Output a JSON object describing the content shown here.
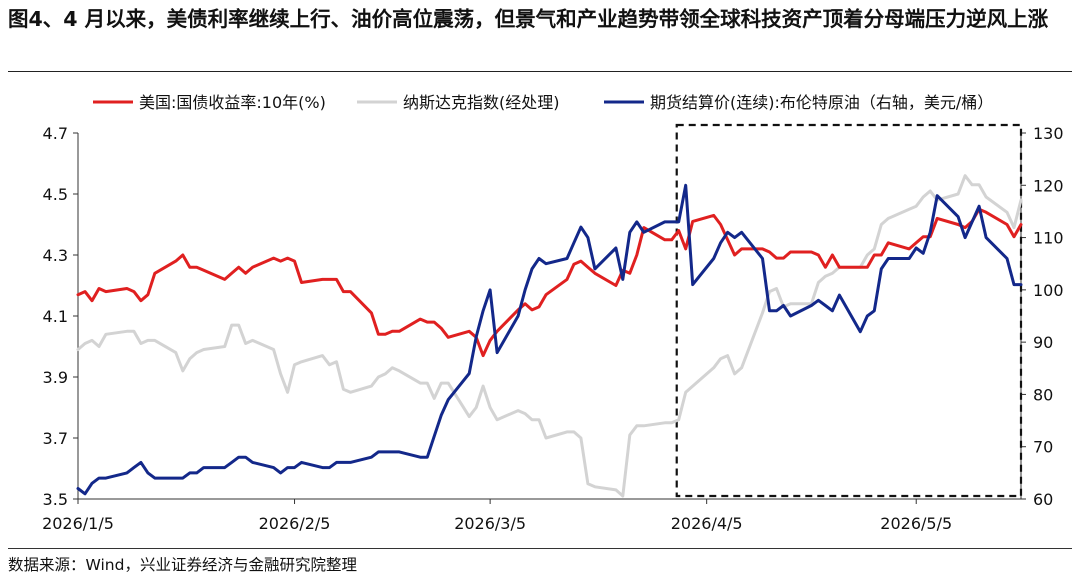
{
  "figure": {
    "title": "图4、4 月以来，美债利率继续上行、油价高位震荡，但景气和产业趋势带领全球科技资产顶着分母端压力逆风上涨",
    "source": "数据来源：Wind，兴业证券经济与金融研究院整理"
  },
  "colors": {
    "us10y": "#e02020",
    "nasdaq": "#d3d3d3",
    "brent": "#13288a"
  },
  "chart_data": {
    "type": "line",
    "title": "图4、4 月以来，美债利率继续上行、油价高位震荡，但景气和产业趋势带领全球科技资产顶着分母端压力逆风上涨",
    "xlabel": "",
    "ylabel": "",
    "y2label": "",
    "x_ticks": [
      "2026/1/5",
      "2026/2/5",
      "2026/3/5",
      "2026/4/5",
      "2026/5/5"
    ],
    "xlim": [
      "2026-01-05",
      "2026-05-20"
    ],
    "ylim_left": [
      3.5,
      4.7
    ],
    "yticks_left": [
      "3.5",
      "3.7",
      "3.9",
      "4.1",
      "4.3",
      "4.5",
      "4.7"
    ],
    "ylim_right": [
      60,
      130
    ],
    "yticks_right": [
      "60",
      "70",
      "80",
      "90",
      "100",
      "110",
      "120",
      "130"
    ],
    "legend_position": "top",
    "grid": false,
    "annotation": "dashed box highlighting the period from 2026/4/1 onward",
    "highlight_range": [
      "2026-04-01",
      "2026-05-20"
    ],
    "series": [
      {
        "name": "美国:国债收益率:10年(%)",
        "axis": "left",
        "color": "#e02020",
        "x": [
          "2026-01-05",
          "2026-01-06",
          "2026-01-07",
          "2026-01-08",
          "2026-01-09",
          "2026-01-12",
          "2026-01-13",
          "2026-01-14",
          "2026-01-15",
          "2026-01-16",
          "2026-01-19",
          "2026-01-20",
          "2026-01-21",
          "2026-01-22",
          "2026-01-23",
          "2026-01-26",
          "2026-01-27",
          "2026-01-28",
          "2026-01-29",
          "2026-01-30",
          "2026-02-02",
          "2026-02-03",
          "2026-02-04",
          "2026-02-05",
          "2026-02-06",
          "2026-02-09",
          "2026-02-10",
          "2026-02-11",
          "2026-02-12",
          "2026-02-13",
          "2026-02-16",
          "2026-02-17",
          "2026-02-18",
          "2026-02-19",
          "2026-02-20",
          "2026-02-23",
          "2026-02-24",
          "2026-02-25",
          "2026-02-26",
          "2026-02-27",
          "2026-03-02",
          "2026-03-03",
          "2026-03-04",
          "2026-03-05",
          "2026-03-06",
          "2026-03-09",
          "2026-03-10",
          "2026-03-11",
          "2026-03-12",
          "2026-03-13",
          "2026-03-16",
          "2026-03-17",
          "2026-03-18",
          "2026-03-19",
          "2026-03-20",
          "2026-03-23",
          "2026-03-24",
          "2026-03-25",
          "2026-03-26",
          "2026-03-27",
          "2026-03-30",
          "2026-03-31",
          "2026-04-01",
          "2026-04-02",
          "2026-04-03",
          "2026-04-06",
          "2026-04-07",
          "2026-04-08",
          "2026-04-09",
          "2026-04-10",
          "2026-04-13",
          "2026-04-14",
          "2026-04-15",
          "2026-04-16",
          "2026-04-17",
          "2026-04-20",
          "2026-04-21",
          "2026-04-22",
          "2026-04-23",
          "2026-04-24",
          "2026-04-27",
          "2026-04-28",
          "2026-04-29",
          "2026-04-30",
          "2026-05-01",
          "2026-05-04",
          "2026-05-05",
          "2026-05-06",
          "2026-05-07",
          "2026-05-08",
          "2026-05-11",
          "2026-05-12",
          "2026-05-13",
          "2026-05-14",
          "2026-05-15",
          "2026-05-18",
          "2026-05-19",
          "2026-05-20"
        ],
        "values": [
          4.17,
          4.18,
          4.15,
          4.19,
          4.18,
          4.19,
          4.18,
          4.15,
          4.17,
          4.24,
          4.28,
          4.3,
          4.26,
          4.26,
          4.25,
          4.22,
          4.24,
          4.26,
          4.24,
          4.26,
          4.29,
          4.28,
          4.29,
          4.28,
          4.21,
          4.22,
          4.22,
          4.22,
          4.18,
          4.18,
          4.11,
          4.04,
          4.04,
          4.05,
          4.05,
          4.09,
          4.08,
          4.08,
          4.06,
          4.03,
          4.05,
          4.03,
          3.97,
          4.02,
          4.05,
          4.12,
          4.14,
          4.12,
          4.13,
          4.17,
          4.22,
          4.27,
          4.28,
          4.26,
          4.24,
          4.2,
          4.25,
          4.24,
          4.3,
          4.39,
          4.35,
          4.35,
          4.38,
          4.32,
          4.41,
          4.43,
          4.4,
          4.35,
          4.3,
          4.32,
          4.32,
          4.31,
          4.29,
          4.29,
          4.31,
          4.31,
          4.3,
          4.26,
          4.3,
          4.26,
          4.26,
          4.26,
          4.3,
          4.3,
          4.34,
          4.32,
          4.34,
          4.36,
          4.36,
          4.42,
          4.4,
          4.39,
          4.41,
          4.45,
          4.44,
          4.4,
          4.36,
          4.4
        ]
      },
      {
        "name": "纳斯达克指数(经处理)",
        "axis": "left",
        "color": "#d3d3d3",
        "x": [
          "2026-01-05",
          "2026-01-06",
          "2026-01-07",
          "2026-01-08",
          "2026-01-09",
          "2026-01-12",
          "2026-01-13",
          "2026-01-14",
          "2026-01-15",
          "2026-01-16",
          "2026-01-19",
          "2026-01-20",
          "2026-01-21",
          "2026-01-22",
          "2026-01-23",
          "2026-01-26",
          "2026-01-27",
          "2026-01-28",
          "2026-01-29",
          "2026-01-30",
          "2026-02-02",
          "2026-02-03",
          "2026-02-04",
          "2026-02-05",
          "2026-02-06",
          "2026-02-09",
          "2026-02-10",
          "2026-02-11",
          "2026-02-12",
          "2026-02-13",
          "2026-02-16",
          "2026-02-17",
          "2026-02-18",
          "2026-02-19",
          "2026-02-20",
          "2026-02-23",
          "2026-02-24",
          "2026-02-25",
          "2026-02-26",
          "2026-02-27",
          "2026-03-02",
          "2026-03-03",
          "2026-03-04",
          "2026-03-05",
          "2026-03-06",
          "2026-03-09",
          "2026-03-10",
          "2026-03-11",
          "2026-03-12",
          "2026-03-13",
          "2026-03-16",
          "2026-03-17",
          "2026-03-18",
          "2026-03-19",
          "2026-03-20",
          "2026-03-23",
          "2026-03-24",
          "2026-03-25",
          "2026-03-26",
          "2026-03-27",
          "2026-03-30",
          "2026-03-31",
          "2026-04-01",
          "2026-04-02",
          "2026-04-03",
          "2026-04-06",
          "2026-04-07",
          "2026-04-08",
          "2026-04-09",
          "2026-04-10",
          "2026-04-13",
          "2026-04-14",
          "2026-04-15",
          "2026-04-16",
          "2026-04-17",
          "2026-04-20",
          "2026-04-21",
          "2026-04-22",
          "2026-04-23",
          "2026-04-24",
          "2026-04-27",
          "2026-04-28",
          "2026-04-29",
          "2026-04-30",
          "2026-05-01",
          "2026-05-04",
          "2026-05-05",
          "2026-05-06",
          "2026-05-07",
          "2026-05-08",
          "2026-05-11",
          "2026-05-12",
          "2026-05-13",
          "2026-05-14",
          "2026-05-15",
          "2026-05-18",
          "2026-05-19",
          "2026-05-20"
        ],
        "values": [
          3.99,
          4.01,
          4.02,
          4.0,
          4.04,
          4.05,
          4.05,
          4.01,
          4.02,
          4.02,
          3.98,
          3.92,
          3.96,
          3.98,
          3.99,
          4.0,
          4.07,
          4.07,
          4.01,
          4.02,
          3.99,
          3.91,
          3.85,
          3.94,
          3.95,
          3.97,
          3.94,
          3.95,
          3.86,
          3.85,
          3.87,
          3.9,
          3.91,
          3.93,
          3.92,
          3.88,
          3.88,
          3.83,
          3.88,
          3.88,
          3.77,
          3.8,
          3.87,
          3.8,
          3.76,
          3.79,
          3.78,
          3.76,
          3.76,
          3.7,
          3.72,
          3.72,
          3.7,
          3.55,
          3.54,
          3.53,
          3.51,
          3.71,
          3.74,
          3.74,
          3.75,
          3.75,
          3.76,
          3.85,
          3.87,
          3.93,
          3.96,
          3.97,
          3.91,
          3.93,
          4.11,
          4.18,
          4.19,
          4.13,
          4.14,
          4.14,
          4.21,
          4.23,
          4.24,
          4.26,
          4.26,
          4.3,
          4.32,
          4.4,
          4.42,
          4.45,
          4.46,
          4.49,
          4.51,
          4.48,
          4.5,
          4.56,
          4.53,
          4.53,
          4.49,
          4.44,
          4.39,
          4.48
        ]
      },
      {
        "name": "期货结算价(连续):布伦特原油（右轴，美元/桶）",
        "axis": "right",
        "color": "#13288a",
        "x": [
          "2026-01-05",
          "2026-01-06",
          "2026-01-07",
          "2026-01-08",
          "2026-01-09",
          "2026-01-12",
          "2026-01-13",
          "2026-01-14",
          "2026-01-15",
          "2026-01-16",
          "2026-01-19",
          "2026-01-20",
          "2026-01-21",
          "2026-01-22",
          "2026-01-23",
          "2026-01-26",
          "2026-01-27",
          "2026-01-28",
          "2026-01-29",
          "2026-01-30",
          "2026-02-02",
          "2026-02-03",
          "2026-02-04",
          "2026-02-05",
          "2026-02-06",
          "2026-02-09",
          "2026-02-10",
          "2026-02-11",
          "2026-02-12",
          "2026-02-13",
          "2026-02-16",
          "2026-02-17",
          "2026-02-18",
          "2026-02-19",
          "2026-02-20",
          "2026-02-23",
          "2026-02-24",
          "2026-02-25",
          "2026-02-26",
          "2026-02-27",
          "2026-03-02",
          "2026-03-03",
          "2026-03-04",
          "2026-03-05",
          "2026-03-06",
          "2026-03-09",
          "2026-03-10",
          "2026-03-11",
          "2026-03-12",
          "2026-03-13",
          "2026-03-16",
          "2026-03-17",
          "2026-03-18",
          "2026-03-19",
          "2026-03-20",
          "2026-03-23",
          "2026-03-24",
          "2026-03-25",
          "2026-03-26",
          "2026-03-27",
          "2026-03-30",
          "2026-03-31",
          "2026-04-01",
          "2026-04-02",
          "2026-04-03",
          "2026-04-06",
          "2026-04-07",
          "2026-04-08",
          "2026-04-09",
          "2026-04-10",
          "2026-04-13",
          "2026-04-14",
          "2026-04-15",
          "2026-04-16",
          "2026-04-17",
          "2026-04-20",
          "2026-04-21",
          "2026-04-22",
          "2026-04-23",
          "2026-04-24",
          "2026-04-27",
          "2026-04-28",
          "2026-04-29",
          "2026-04-30",
          "2026-05-01",
          "2026-05-04",
          "2026-05-05",
          "2026-05-06",
          "2026-05-07",
          "2026-05-08",
          "2026-05-11",
          "2026-05-12",
          "2026-05-13",
          "2026-05-14",
          "2026-05-15",
          "2026-05-18",
          "2026-05-19",
          "2026-05-20"
        ],
        "values": [
          62,
          61,
          63,
          64,
          64,
          65,
          66,
          67,
          65,
          64,
          64,
          64,
          65,
          65,
          66,
          66,
          67,
          68,
          68,
          67,
          66,
          65,
          66,
          66,
          67,
          66,
          66,
          67,
          67,
          67,
          68,
          69,
          69,
          69,
          69,
          68,
          68,
          72,
          76,
          79,
          84,
          91,
          96,
          100,
          88,
          95,
          100,
          104,
          106,
          105,
          106,
          109,
          112,
          110,
          104,
          108,
          102,
          111,
          113,
          111,
          113,
          113,
          113,
          120,
          101,
          106,
          109,
          111,
          110,
          111,
          106,
          96,
          96,
          97,
          95,
          97,
          98,
          97,
          96,
          99,
          92,
          95,
          96,
          104,
          106,
          106,
          108,
          107,
          111,
          118,
          114,
          110,
          113,
          116,
          110,
          106,
          101,
          101
        ]
      }
    ]
  }
}
